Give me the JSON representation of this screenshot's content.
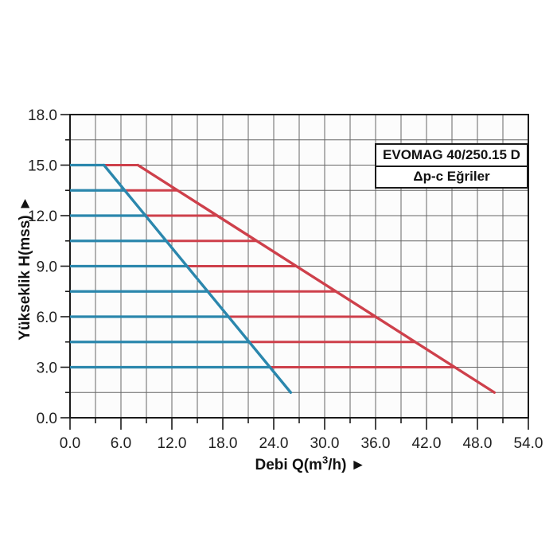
{
  "legend": {
    "model": "EVOMAG 40/250.15 D",
    "curve_type": "Δp-c Eğriler"
  },
  "axes": {
    "y_title": "Yükseklik H(mss) ►",
    "x_title": {
      "pre": "Debi Q(m",
      "sup": "3",
      "post": "/h) ►"
    }
  },
  "chart_data": {
    "type": "line",
    "title": "EVOMAG 40/250.15 D",
    "subtitle": "Δp-c Eğriler",
    "xlabel": "Debi Q(m3/h)",
    "ylabel": "Yükseklik H(mss)",
    "xlim": [
      0,
      54
    ],
    "ylim": [
      0,
      18
    ],
    "x_major_ticks": [
      0,
      6,
      12,
      18,
      24,
      30,
      36,
      42,
      48,
      54
    ],
    "y_major_ticks": [
      0,
      3,
      6,
      9,
      12,
      15,
      18
    ],
    "x_minor_step": 3,
    "y_minor_step": 1.5,
    "tick_decimals": 1,
    "grid": true,
    "legend_position": "top-right",
    "colors": {
      "blue": "#2b87ad",
      "red": "#ce404b",
      "grid": "#666666",
      "axis": "#1a1a1a",
      "plot_bg": "#fcfcfc",
      "text": "#1f1f1f"
    },
    "series": [
      {
        "name": "blue-max-curve",
        "color": "#2b87ad",
        "points": [
          [
            4,
            15
          ],
          [
            26,
            1.5
          ]
        ]
      },
      {
        "name": "red-max-curve",
        "color": "#ce404b",
        "points": [
          [
            8,
            15
          ],
          [
            50,
            1.5
          ]
        ]
      }
    ],
    "constant_pressure_lines": [
      {
        "h": 15.0,
        "blue": [
          0,
          4.0
        ],
        "red": [
          4.0,
          8.0
        ]
      },
      {
        "h": 13.5,
        "blue": [
          0,
          6.4
        ],
        "red": [
          6.4,
          12.7
        ]
      },
      {
        "h": 12.0,
        "blue": [
          0,
          8.9
        ],
        "red": [
          8.9,
          17.3
        ]
      },
      {
        "h": 10.5,
        "blue": [
          0,
          11.3
        ],
        "red": [
          11.3,
          22.0
        ]
      },
      {
        "h": 9.0,
        "blue": [
          0,
          13.8
        ],
        "red": [
          13.8,
          26.7
        ]
      },
      {
        "h": 7.5,
        "blue": [
          0,
          16.2
        ],
        "red": [
          16.2,
          31.3
        ]
      },
      {
        "h": 6.0,
        "blue": [
          0,
          18.7
        ],
        "red": [
          18.7,
          36.0
        ]
      },
      {
        "h": 4.5,
        "blue": [
          0,
          21.1
        ],
        "red": [
          21.1,
          40.7
        ]
      },
      {
        "h": 3.0,
        "blue": [
          0,
          23.6
        ],
        "red": [
          23.6,
          45.3
        ]
      }
    ]
  }
}
